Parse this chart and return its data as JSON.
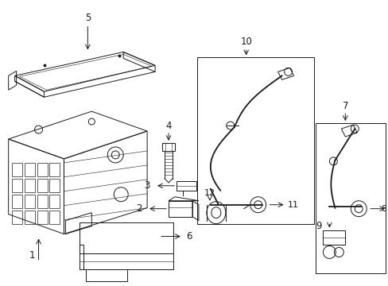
{
  "bg_color": "#ffffff",
  "line_color": "#1a1a1a",
  "fig_width": 4.89,
  "fig_height": 3.6,
  "dpi": 100,
  "lw": 0.7,
  "lw_thick": 1.3,
  "gray": "#888888"
}
